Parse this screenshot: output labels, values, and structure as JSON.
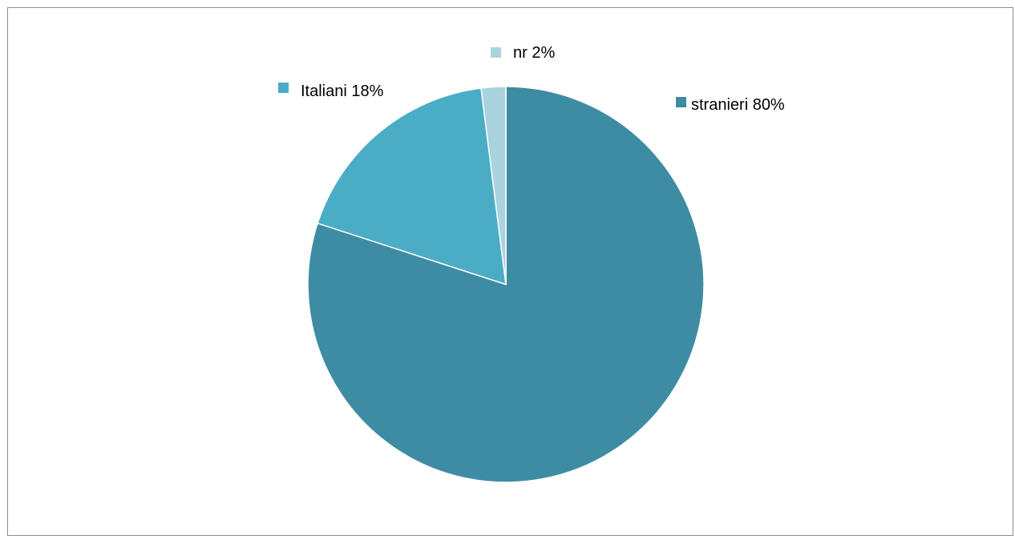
{
  "chart_data": {
    "type": "pie",
    "title": "",
    "slices": [
      {
        "label": "stranieri 80%",
        "value": 80,
        "color": "#3E8CA3"
      },
      {
        "label": "Italiani 18%",
        "value": 18,
        "color": "#4BACC6"
      },
      {
        "label": "nr 2%",
        "value": 2,
        "color": "#A9D3DF"
      }
    ],
    "legend": "labels beside slices",
    "start_angle": "12 o'clock, clockwise"
  }
}
